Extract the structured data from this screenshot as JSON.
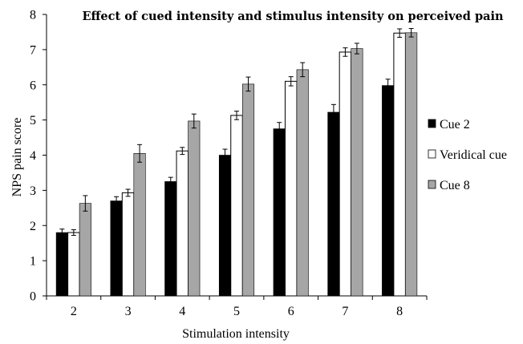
{
  "chart_data": {
    "type": "bar",
    "title": "Effect of cued intensity and stimulus intensity on perceived pain",
    "xlabel": "Stimulation intensity",
    "ylabel": "NPS pain score",
    "ylim": [
      0,
      8
    ],
    "yticks": [
      "0",
      "1",
      "2",
      "3",
      "4",
      "5",
      "6",
      "7",
      "8"
    ],
    "categories": [
      "2",
      "3",
      "4",
      "5",
      "6",
      "7",
      "8"
    ],
    "grid": false,
    "legend_position": "right",
    "series": [
      {
        "name": "Cue 2",
        "color": "#000000",
        "values": [
          1.8,
          2.7,
          3.25,
          4.0,
          4.75,
          5.22,
          5.98
        ],
        "errors": [
          0.1,
          0.12,
          0.12,
          0.17,
          0.18,
          0.22,
          0.18
        ]
      },
      {
        "name": "Veridical cue",
        "color": "#ffffff",
        "values": [
          1.8,
          2.93,
          4.12,
          5.13,
          6.1,
          6.93,
          7.47
        ],
        "errors": [
          0.08,
          0.1,
          0.1,
          0.12,
          0.13,
          0.12,
          0.12
        ]
      },
      {
        "name": "Cue 8",
        "color": "#a6a6a6",
        "values": [
          2.63,
          4.05,
          4.97,
          6.02,
          6.43,
          7.03,
          7.48
        ],
        "errors": [
          0.22,
          0.25,
          0.2,
          0.2,
          0.2,
          0.15,
          0.12
        ]
      }
    ]
  }
}
